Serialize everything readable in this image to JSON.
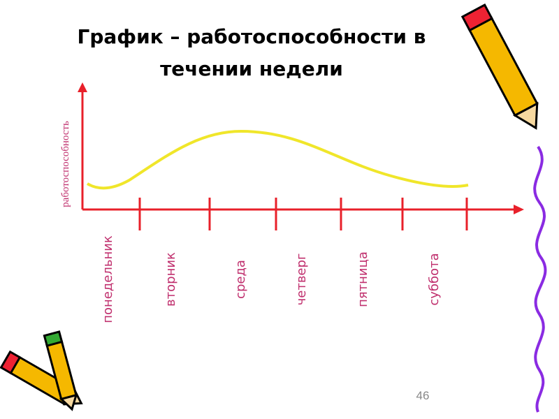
{
  "title": {
    "line1": "График – работоспособности в",
    "line2": "течении недели"
  },
  "y_axis_label": "работоспособность",
  "days": [
    "понедельник",
    "вторник",
    "среда",
    "четверг",
    "пятница",
    "суббота"
  ],
  "page_number": "46"
}
